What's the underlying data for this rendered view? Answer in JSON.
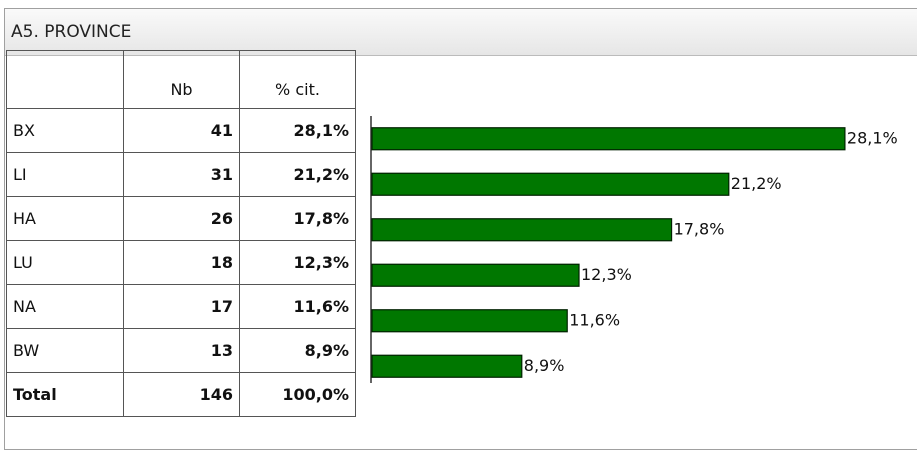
{
  "title": "A5. PROVINCE",
  "table": {
    "header": [
      "Nb",
      "% cit."
    ],
    "counts": [
      41,
      31,
      26,
      18,
      17,
      13
    ],
    "total": {
      "label": "Total",
      "count": 146,
      "percent": "100,0%"
    }
  },
  "chart_data": {
    "type": "bar",
    "orientation": "horizontal",
    "categories": [
      "BX",
      "LI",
      "HA",
      "LU",
      "NA",
      "BW"
    ],
    "values": [
      28.1,
      21.2,
      17.8,
      12.3,
      11.6,
      8.9
    ],
    "value_labels": [
      "28,1%",
      "21,2%",
      "17,8%",
      "12,3%",
      "11,6%",
      "8,9%"
    ],
    "color": "#007700"
  }
}
